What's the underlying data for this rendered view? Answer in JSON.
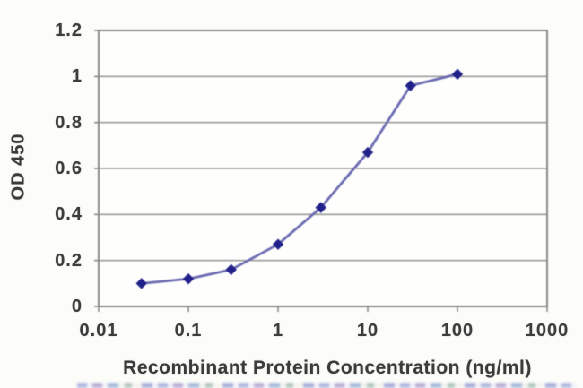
{
  "chart_data": {
    "type": "line",
    "title": "",
    "xlabel": "Recombinant Protein Concentration (ng/ml)",
    "ylabel": "OD 450",
    "x_scale": "log",
    "xlim": [
      0.01,
      1000
    ],
    "ylim": [
      0,
      1.2
    ],
    "x_ticks": [
      0.01,
      0.1,
      1,
      10,
      100,
      1000
    ],
    "x_tick_labels": [
      "0.01",
      "0.1",
      "1",
      "10",
      "100",
      "1000"
    ],
    "y_ticks": [
      0,
      0.2,
      0.4,
      0.6,
      0.8,
      1,
      1.2
    ],
    "y_tick_labels": [
      "0",
      "0.2",
      "0.4",
      "0.6",
      "0.8",
      "1",
      "1.2"
    ],
    "grid": "horizontal",
    "legend": "none",
    "series": [
      {
        "x": [
          0.03,
          0.1,
          0.3,
          1,
          3,
          10,
          30,
          100
        ],
        "y": [
          0.1,
          0.12,
          0.16,
          0.27,
          0.43,
          0.67,
          0.96,
          1.01
        ],
        "marker": "diamond",
        "line_color": "#6C6CB2",
        "marker_color": "#21218A"
      }
    ],
    "colors": {
      "grid": "#9c9c9c",
      "frame": "#8a8a8a",
      "text": "#3d3d3d",
      "plot_background": "#fefefd"
    }
  }
}
